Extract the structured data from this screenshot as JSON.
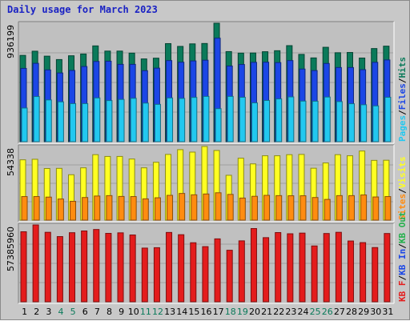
{
  "title": "Daily usage for March 2023",
  "colors": {
    "hits": "#0a7a5a",
    "files": "#1b46e6",
    "pages": "#22c8f0",
    "visits": "#ffff22",
    "sites": "#ff8c10",
    "kbf": "#e41c1c",
    "kbin": "#1b46e6",
    "kbout": "#22b04a",
    "weekday": "#000000",
    "weekend": "#0a7a5a",
    "panel": "#c0c0c0"
  },
  "panel_max_labels": {
    "hits": "936199",
    "visits": "54338",
    "kbf": "57385960"
  },
  "legends": {
    "panel1": [
      {
        "text": "Hits",
        "color_key": "hits"
      },
      {
        "text": "/",
        "color_key": "weekday"
      },
      {
        "text": "Files",
        "color_key": "files"
      },
      {
        "text": "/",
        "color_key": "weekday"
      },
      {
        "text": "Pages",
        "color_key": "pages"
      }
    ],
    "panel2": [
      {
        "text": "Visits",
        "color_key": "visits"
      },
      {
        "text": "/",
        "color_key": "weekday"
      },
      {
        "text": "Sites",
        "color_key": "sites"
      }
    ],
    "panel3": [
      {
        "text": "KB Out",
        "color_key": "kbout"
      },
      {
        "text": "/",
        "color_key": "weekday"
      },
      {
        "text": "KB In",
        "color_key": "kbin"
      },
      {
        "text": "/",
        "color_key": "weekday"
      },
      {
        "text": "KB F",
        "color_key": "kbf"
      }
    ]
  },
  "chart_data": {
    "type": "bar",
    "categories": [
      "1",
      "2",
      "3",
      "4",
      "5",
      "6",
      "7",
      "8",
      "9",
      "10",
      "11",
      "12",
      "13",
      "14",
      "15",
      "16",
      "17",
      "18",
      "19",
      "20",
      "21",
      "22",
      "23",
      "24",
      "25",
      "26",
      "27",
      "28",
      "29",
      "30",
      "31"
    ],
    "weekend_days": [
      "4",
      "5",
      "11",
      "12",
      "18",
      "19",
      "25",
      "26"
    ],
    "panels": [
      {
        "id": "usage",
        "ylim": [
          0,
          936199
        ],
        "series": [
          {
            "name": "Hits",
            "values": [
              682000,
              715000,
              676000,
              649000,
              679000,
              693000,
              757000,
              716000,
              716000,
              700000,
              654000,
              660000,
              775000,
              753000,
              773000,
              776000,
              936199,
              712000,
              700000,
              701000,
              711000,
              719000,
              759000,
              690000,
              662000,
              746000,
              703000,
              705000,
              661000,
              736000,
              755000
            ]
          },
          {
            "name": "Files",
            "values": [
              579000,
              619000,
              567000,
              543000,
              563000,
              594000,
              634000,
              636000,
              611000,
              611000,
              561000,
              581000,
              641000,
              628000,
              638000,
              644000,
              818000,
              598000,
              610000,
              627000,
              628000,
              625000,
              641000,
              574000,
              562000,
              618000,
              586000,
              586000,
              569000,
              627000,
              646000
            ]
          },
          {
            "name": "Pages",
            "values": [
              266000,
              357000,
              330000,
              315000,
              301000,
              301000,
              346000,
              325000,
              334000,
              343000,
              305000,
              295000,
              346000,
              342000,
              350000,
              358000,
              261000,
              358000,
              351000,
              307000,
              326000,
              338000,
              354000,
              321000,
              320000,
              353000,
              317000,
              300000,
              292000,
              283000,
              351000
            ]
          }
        ]
      },
      {
        "id": "visitors",
        "ylim": [
          0,
          54338
        ],
        "series": [
          {
            "name": "Visits",
            "values": [
              44500,
              44900,
              38100,
              38200,
              33500,
              38600,
              48300,
              47000,
              47000,
              45100,
              38600,
              42700,
              48500,
              52000,
              50200,
              54338,
              51400,
              33100,
              45700,
              41500,
              47500,
              47500,
              48300,
              48500,
              38300,
              42200,
              48300,
              47500,
              51000,
              44100,
              44200
            ]
          },
          {
            "name": "Sites",
            "values": [
              17400,
              17400,
              17000,
              15600,
              13900,
              16700,
              17800,
              18100,
              17500,
              17400,
              15700,
              16500,
              18300,
              19700,
              18700,
              19300,
              20200,
              19000,
              16300,
              17600,
              18300,
              18100,
              18000,
              18000,
              16700,
              15300,
              18100,
              18100,
              18600,
              17100,
              17400
            ]
          }
        ]
      },
      {
        "id": "traffic",
        "ylim": [
          0,
          57385960
        ],
        "series": [
          {
            "name": "KB F",
            "values": [
              52300000,
              57385960,
              51900000,
              48700000,
              51600000,
              52900000,
              54000000,
              51100000,
              51500000,
              49900000,
              40100000,
              40400000,
              51800000,
              50100000,
              44100000,
              41200000,
              47000000,
              38500000,
              45500000,
              54700000,
              47900000,
              51700000,
              50800000,
              51300000,
              41700000,
              51000000,
              51900000,
              45400000,
              44200000,
              40500000,
              51000000
            ]
          }
        ]
      }
    ]
  }
}
